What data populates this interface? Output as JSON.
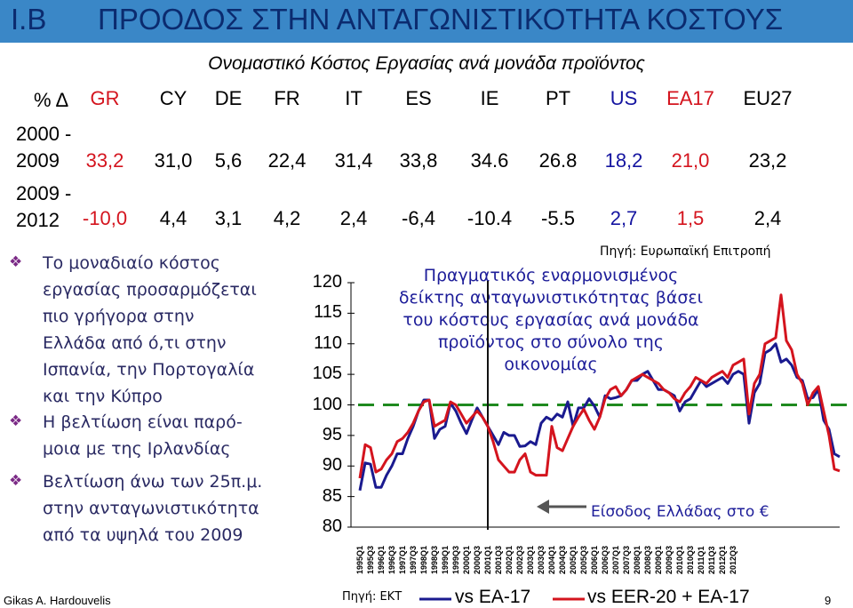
{
  "header": {
    "number": "I.B",
    "title": "ΠΡΟΟΔΟΣ ΣΤΗΝ ΑΝΤΑΓΩΝΙΣΤΙΚΟΤΗΤΑ ΚΟΣΤΟΥΣ"
  },
  "table": {
    "title": "Ονομαστικό Κόστος Εργασίας ανά μονάδα προϊόντος",
    "corner": "% Δ",
    "columns": [
      "GR",
      "CY",
      "DE",
      "FR",
      "IT",
      "ES",
      "IE",
      "PT",
      "US",
      "EA17",
      "EU27"
    ],
    "rows": [
      {
        "label_line1": "2000 -",
        "label_line2": "2009",
        "values": [
          "33,2",
          "31,0",
          "5,6",
          "22,4",
          "31,4",
          "33,8",
          "34.6",
          "26.8",
          "18,2",
          "21,0",
          "23,2"
        ]
      },
      {
        "label_line1": "2009 -",
        "label_line2": "2012",
        "values": [
          "-10,0",
          "4,4",
          "3,1",
          "4,2",
          "2,4",
          "-6,4",
          "-10.4",
          "-5.5",
          "2,7",
          "1,5",
          "2,4"
        ]
      }
    ],
    "colors": {
      "GR": "#d4141e",
      "US": "#1414a0",
      "EA17": "#d4141e",
      "default": "#000000"
    }
  },
  "bullets": [
    {
      "icon": "diamond-bullet-icon",
      "lines": [
        "Το μοναδιαίο κόστος",
        "εργασίας προσαρμόζεται",
        "πιο γρήγορα στην",
        "Ελλάδα από ό,τι στην",
        "Ισπανία, την Πορτογαλία",
        "και την Κύπρο"
      ]
    },
    {
      "icon": "diamond-bullet-icon",
      "lines": [
        "Η βελτίωση είναι παρό-",
        "μοια με της Ιρλανδίας"
      ]
    },
    {
      "icon": "diamond-bullet-icon",
      "lines": [
        "Βελτίωση άνω των 25π.μ.",
        "στην ανταγωνιστικότητα",
        "από τα υψηλά του 2009"
      ]
    }
  ],
  "chart_source": "Πηγή: Ευρωπαϊκή Επιτροπή",
  "chart_note": [
    "Πραγματικός εναρμονισμένος",
    "δείκτης ανταγωνιστικότητας βάσει",
    "του κόστους εργασίας ανά μονάδα",
    "προϊόντος στο σύνολο της",
    "οικονομίας"
  ],
  "entry_annotation": "Είσοδος Ελλάδας στο €",
  "footer": {
    "author": "Gikas A. Hardouvelis",
    "source": "Πηγή: ΕΚΤ",
    "legend_vs1": "vs EA-17",
    "legend_vs2": "vs EER-20 + EA-17",
    "page": "9"
  },
  "chart_data": {
    "type": "line",
    "ylim": [
      80,
      120
    ],
    "yticks": [
      120,
      115,
      110,
      105,
      100,
      95,
      90,
      85,
      80
    ],
    "x_tick_labels": [
      "1995Q1",
      "1995Q3",
      "1996Q1",
      "1996Q3",
      "1997Q1",
      "1997Q3",
      "1998Q1",
      "1998Q3",
      "1999Q1",
      "1999Q3",
      "2000Q1",
      "2000Q3",
      "2001Q1",
      "2001Q3",
      "2002Q1",
      "2002Q3",
      "2003Q1",
      "2003Q3",
      "2004Q1",
      "2004Q3",
      "2005Q1",
      "2005Q3",
      "2006Q1",
      "2006Q3",
      "2007Q1",
      "2007Q3",
      "2008Q1",
      "2008Q3",
      "2009Q1",
      "2009Q3",
      "2010Q1",
      "2010Q3",
      "2011Q1",
      "2011Q3",
      "2012Q1",
      "2012Q3"
    ],
    "reference_line": 100,
    "euro_entry_x": "2001Q1",
    "series": [
      {
        "name": "vs EA-17",
        "color": "#1a1a8f",
        "values": [
          86,
          90.5,
          90.3,
          86.5,
          86.5,
          88.5,
          90,
          92,
          92,
          94.5,
          96.5,
          99,
          100.8,
          100.8,
          94.5,
          96,
          96.5,
          100.3,
          99,
          97,
          95.3,
          97.5,
          99.5,
          98,
          96.5,
          95,
          93.5,
          95.5,
          95,
          95,
          93.2,
          93.3,
          94,
          93.5,
          97,
          98,
          97.5,
          98.5,
          98,
          100.5,
          96.5,
          99.5,
          99.5,
          101,
          99.8,
          98,
          101.5,
          101,
          101.2,
          101.5,
          102.5,
          104,
          104,
          105,
          105.5,
          104,
          102.5,
          102.5,
          102,
          101.5,
          99,
          100.5,
          101,
          102.5,
          104,
          103,
          103.5,
          104,
          104.5,
          103.5,
          105,
          105.5,
          105,
          97,
          102,
          103.5,
          108.5,
          109,
          110,
          107,
          107.5,
          106.5,
          104.5,
          104,
          101,
          101.2,
          102.5,
          97.5,
          96,
          92,
          91.5
        ]
      },
      {
        "name": "vs EER-20 + EA-17",
        "color": "#d4141e",
        "values": [
          88,
          93.5,
          93,
          89,
          89.5,
          91,
          92,
          94,
          94.5,
          95.5,
          97,
          99,
          100.5,
          100.8,
          96.5,
          97,
          97.5,
          100.5,
          100,
          98.5,
          97,
          98,
          99,
          98,
          96.5,
          94,
          91,
          90,
          89,
          89,
          91,
          92,
          89,
          88.5,
          88.5,
          88.5,
          96.5,
          93,
          92.5,
          94.5,
          96.5,
          98,
          99.3,
          97.5,
          96,
          98,
          101,
          102.5,
          103,
          101.5,
          102.5,
          104,
          104.5,
          105,
          104.5,
          104,
          103.5,
          102.5,
          102,
          101,
          100.5,
          102,
          103,
          104.5,
          104,
          103.5,
          104.5,
          105,
          105.5,
          104.5,
          106.5,
          107,
          107.5,
          98.5,
          103.5,
          105,
          110,
          110.5,
          111,
          118,
          110.5,
          109,
          105,
          103.5,
          100,
          102,
          103,
          99,
          95,
          89.5,
          89.2
        ]
      }
    ]
  }
}
